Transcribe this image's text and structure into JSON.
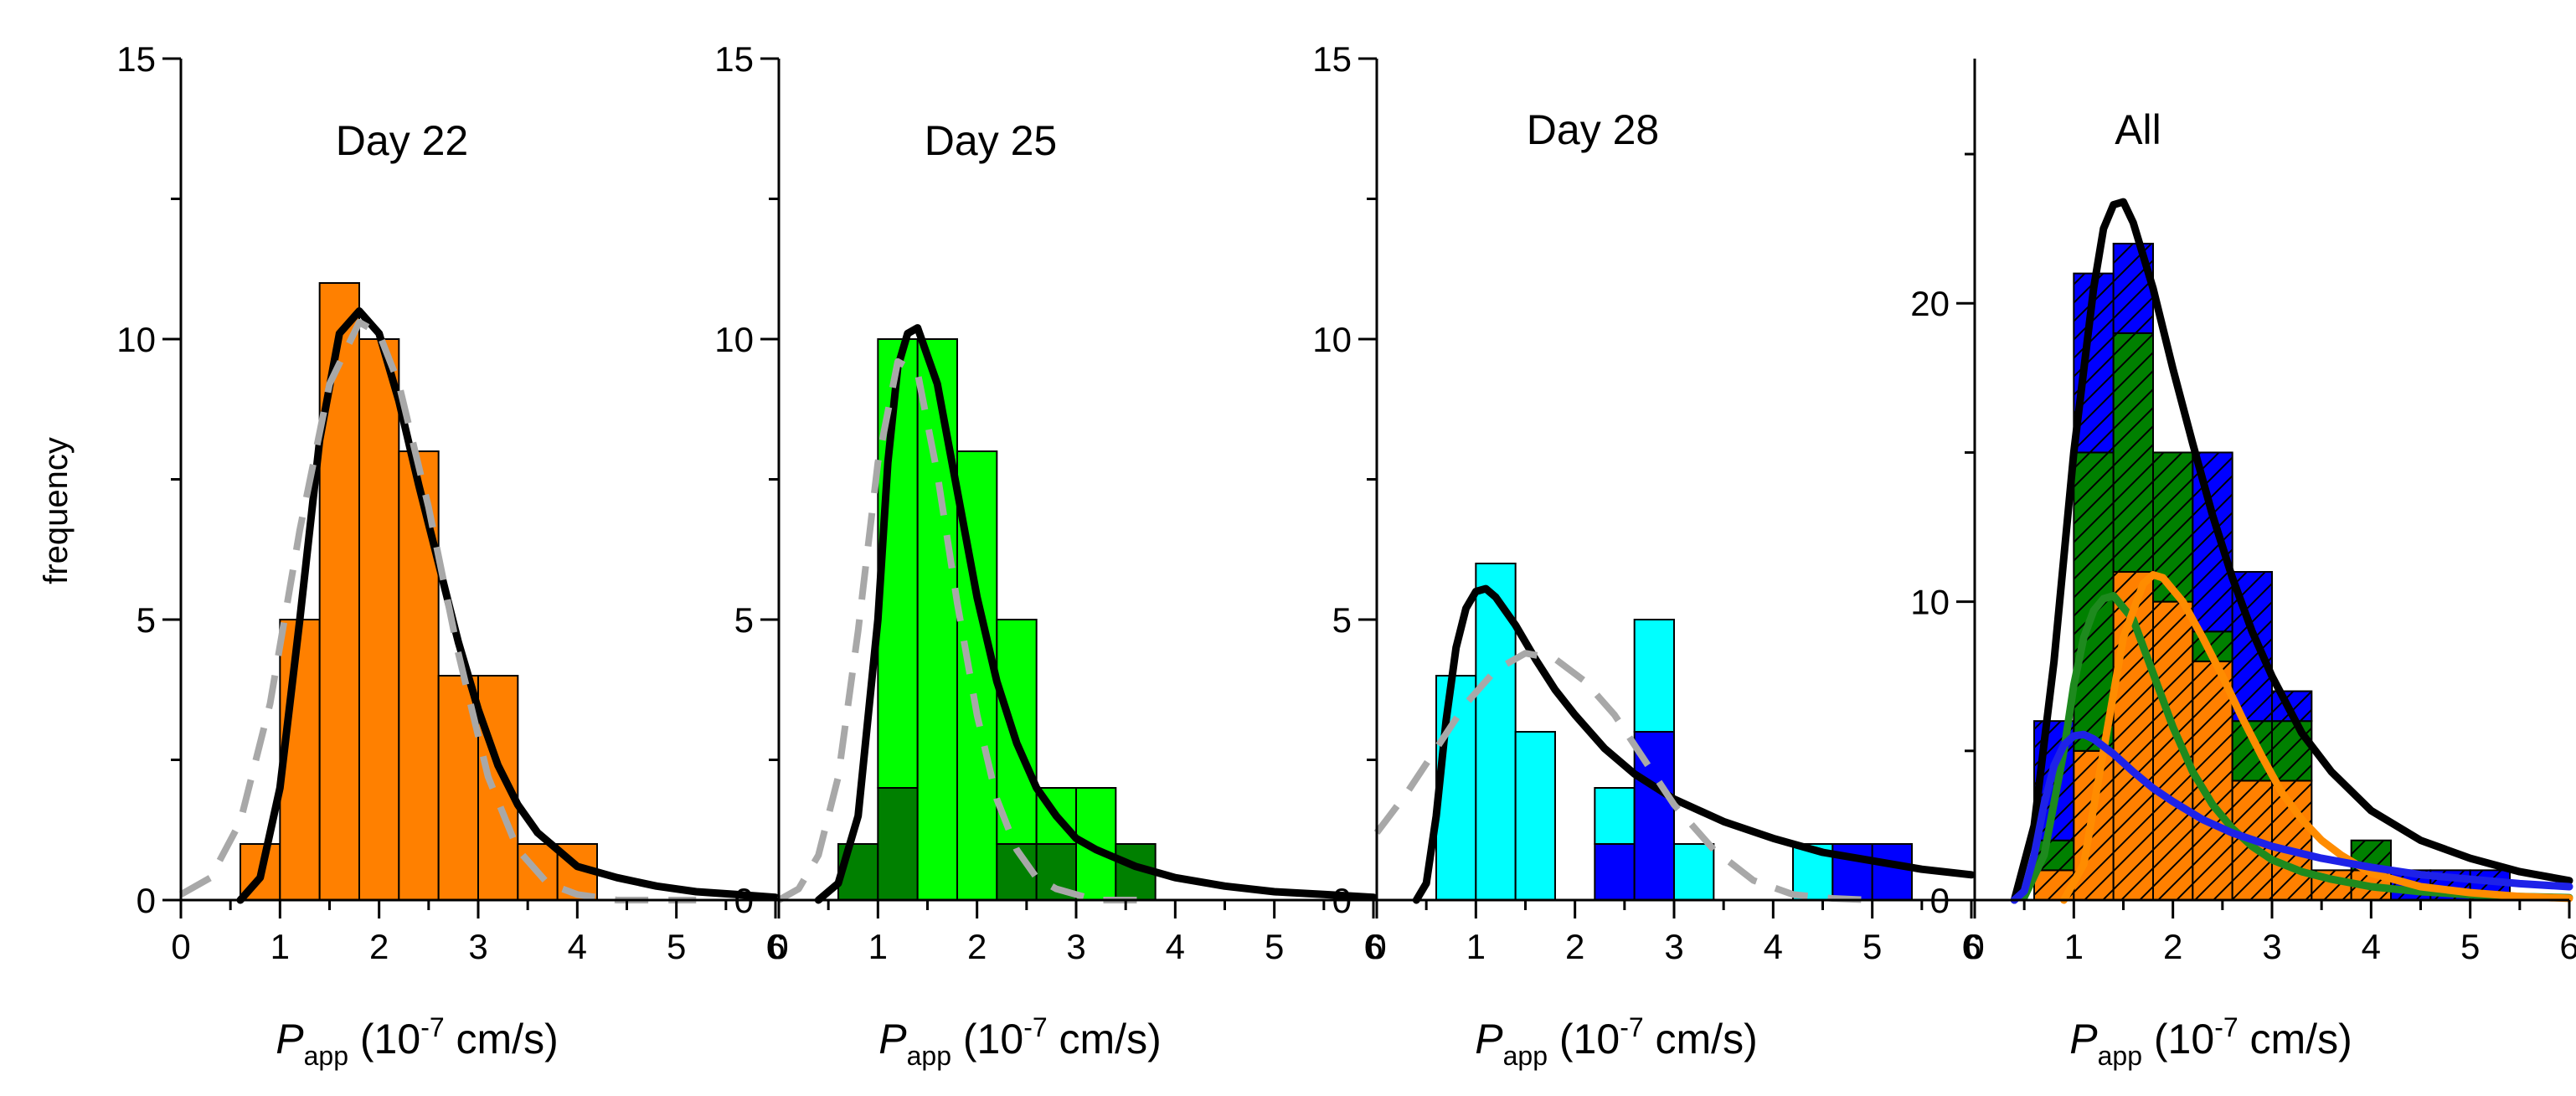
{
  "figure": {
    "ylabel": "frequency",
    "xlabel_prefix": "P",
    "xlabel_sub": "app",
    "xlabel_unit_pre": " (10",
    "xlabel_exp": "-7",
    "xlabel_unit_post": " cm/s)"
  },
  "colors": {
    "orange": "#FF8000",
    "bright_green": "#00FF00",
    "dark_green": "#008000",
    "cyan": "#00FFFF",
    "blue": "#0000FF",
    "fit_black": "#000000",
    "dash_gray": "#A8A8A8",
    "fit_green": "#1E8A1E",
    "fit_orange": "#FF8C00",
    "fit_blue": "#1E22E8"
  },
  "chart_data": [
    {
      "type": "bar",
      "title": "Day 22",
      "xlim": [
        0,
        6
      ],
      "ylim": [
        0,
        15
      ],
      "xticks": [
        0,
        1,
        2,
        3,
        4,
        5,
        6
      ],
      "yticks": [
        0,
        5,
        10,
        15
      ],
      "bin_width": 0.4,
      "bin_centers": [
        0.8,
        1.2,
        1.6,
        2.0,
        2.4,
        2.8,
        3.2,
        3.6,
        4.0,
        4.4
      ],
      "series": [
        {
          "name": "Day 22",
          "color": "orange",
          "values": [
            1,
            5,
            11,
            10,
            8,
            4,
            4,
            1,
            1,
            0
          ]
        }
      ],
      "fits": [
        {
          "name": "fit",
          "color": "fit_black",
          "style": "solid",
          "x": [
            0.6,
            0.8,
            1.0,
            1.2,
            1.4,
            1.6,
            1.8,
            2.0,
            2.2,
            2.4,
            2.6,
            2.8,
            3.0,
            3.2,
            3.4,
            3.6,
            3.8,
            4.0,
            4.4,
            4.8,
            5.2,
            5.6,
            6.0
          ],
          "y": [
            0,
            0.4,
            2.0,
            5.0,
            8.2,
            10.1,
            10.5,
            10.1,
            8.9,
            7.4,
            6.0,
            4.6,
            3.4,
            2.4,
            1.7,
            1.2,
            0.9,
            0.6,
            0.4,
            0.25,
            0.15,
            0.1,
            0.05
          ]
        },
        {
          "name": "gaussian",
          "color": "dash_gray",
          "style": "dashed",
          "x": [
            0.0,
            0.3,
            0.6,
            0.9,
            1.2,
            1.5,
            1.8,
            2.0,
            2.2,
            2.5,
            2.8,
            3.1,
            3.4,
            3.7,
            4.0,
            4.4,
            4.8,
            5.2
          ],
          "y": [
            0.1,
            0.4,
            1.4,
            3.5,
            6.6,
            9.2,
            10.3,
            10.1,
            9.2,
            7.0,
            4.4,
            2.2,
            0.9,
            0.3,
            0.1,
            0.0,
            0.0,
            0.0
          ]
        }
      ]
    },
    {
      "type": "bar",
      "title": "Day 25",
      "xlim": [
        0,
        6
      ],
      "ylim": [
        0,
        15
      ],
      "xticks": [
        0,
        1,
        2,
        3,
        4,
        5,
        6
      ],
      "yticks": [
        0,
        5,
        10,
        15
      ],
      "bin_width": 0.4,
      "bin_centers": [
        0.8,
        1.2,
        1.6,
        2.0,
        2.4,
        2.8,
        3.2,
        3.6
      ],
      "series": [
        {
          "name": "dark",
          "color": "dark_green",
          "values": [
            1,
            2,
            0,
            0,
            1,
            1,
            0,
            1
          ]
        },
        {
          "name": "light",
          "color": "bright_green",
          "values": [
            0,
            8,
            10,
            8,
            4,
            1,
            2,
            0
          ]
        }
      ],
      "fits": [
        {
          "name": "fit",
          "color": "fit_black",
          "style": "solid",
          "x": [
            0.4,
            0.6,
            0.8,
            1.0,
            1.1,
            1.2,
            1.3,
            1.4,
            1.6,
            1.8,
            2.0,
            2.2,
            2.4,
            2.6,
            2.8,
            3.0,
            3.2,
            3.6,
            4.0,
            4.5,
            5.0,
            5.5,
            6.0
          ],
          "y": [
            0,
            0.3,
            1.5,
            5.0,
            7.8,
            9.5,
            10.1,
            10.2,
            9.2,
            7.3,
            5.4,
            3.9,
            2.8,
            2.0,
            1.5,
            1.1,
            0.9,
            0.6,
            0.4,
            0.25,
            0.15,
            0.1,
            0.05
          ]
        },
        {
          "name": "gaussian",
          "color": "dash_gray",
          "style": "dashed",
          "x": [
            0.0,
            0.2,
            0.4,
            0.6,
            0.8,
            1.0,
            1.2,
            1.4,
            1.6,
            1.8,
            2.0,
            2.2,
            2.4,
            2.6,
            2.8,
            3.0,
            3.2,
            3.4,
            3.8
          ],
          "y": [
            0.0,
            0.2,
            0.8,
            2.2,
            4.8,
            7.8,
            9.6,
            9.4,
            7.6,
            5.3,
            3.3,
            1.8,
            0.9,
            0.4,
            0.2,
            0.1,
            0.0,
            0.0,
            0.0
          ]
        }
      ]
    },
    {
      "type": "bar",
      "title": "Day 28",
      "xlim": [
        0,
        6
      ],
      "ylim": [
        0,
        15
      ],
      "xticks": [
        0,
        1,
        2,
        3,
        4,
        5,
        6
      ],
      "yticks": [
        0,
        5,
        10,
        15
      ],
      "bin_width": 0.4,
      "bin_centers": [
        0.8,
        1.2,
        1.6,
        2.0,
        2.4,
        2.8,
        3.2,
        3.6,
        4.0,
        4.4,
        4.8,
        5.2
      ],
      "series": [
        {
          "name": "blue",
          "color": "blue",
          "values": [
            0,
            0,
            0,
            0,
            1,
            3,
            0,
            0,
            0,
            0,
            1,
            1
          ]
        },
        {
          "name": "cyan",
          "color": "cyan",
          "values": [
            4,
            6,
            3,
            0,
            1,
            2,
            1,
            0,
            0,
            1,
            0,
            0
          ]
        }
      ],
      "fits": [
        {
          "name": "fit",
          "color": "fit_black",
          "style": "solid",
          "x": [
            0.4,
            0.5,
            0.6,
            0.7,
            0.8,
            0.9,
            1.0,
            1.1,
            1.2,
            1.4,
            1.6,
            1.8,
            2.0,
            2.3,
            2.6,
            3.0,
            3.5,
            4.0,
            4.5,
            5.0,
            5.5,
            6.0
          ],
          "y": [
            0.0,
            0.3,
            1.5,
            3.2,
            4.5,
            5.2,
            5.5,
            5.55,
            5.4,
            4.9,
            4.3,
            3.75,
            3.3,
            2.7,
            2.25,
            1.8,
            1.4,
            1.1,
            0.85,
            0.7,
            0.55,
            0.45
          ]
        },
        {
          "name": "gaussian",
          "color": "dash_gray",
          "style": "dashed",
          "x": [
            0.0,
            0.3,
            0.6,
            0.9,
            1.2,
            1.5,
            1.8,
            2.1,
            2.4,
            2.7,
            3.0,
            3.4,
            3.8,
            4.2,
            4.6,
            5.0
          ],
          "y": [
            1.2,
            1.9,
            2.7,
            3.5,
            4.1,
            4.4,
            4.3,
            3.9,
            3.3,
            2.5,
            1.7,
            0.9,
            0.35,
            0.1,
            0.03,
            0.0
          ]
        }
      ]
    },
    {
      "type": "bar",
      "title": "All",
      "xlim": [
        0,
        6
      ],
      "ylim": [
        0,
        28.2
      ],
      "xticks": [
        0,
        1,
        2,
        3,
        4,
        5,
        6
      ],
      "yticks": [
        0,
        10,
        20
      ],
      "minor_yticks": [
        5,
        15,
        25
      ],
      "bin_width": 0.4,
      "bin_centers": [
        0.8,
        1.2,
        1.6,
        2.0,
        2.4,
        2.8,
        3.2,
        3.6,
        4.0,
        4.4,
        4.8,
        5.2
      ],
      "hatched": true,
      "series": [
        {
          "name": "orange",
          "color": "orange",
          "values": [
            1,
            5,
            11,
            10,
            8,
            4,
            4,
            1,
            1,
            0,
            0,
            0
          ]
        },
        {
          "name": "green",
          "color": "dark_green",
          "values": [
            1,
            10,
            8,
            5,
            1,
            2,
            2,
            0,
            1,
            0,
            0,
            0
          ]
        },
        {
          "name": "blue",
          "color": "blue",
          "values": [
            4,
            6,
            3,
            0,
            6,
            5,
            1,
            0,
            0,
            1,
            1,
            1
          ]
        }
      ],
      "fits": [
        {
          "name": "total",
          "color": "fit_black",
          "style": "solid",
          "x": [
            0.4,
            0.6,
            0.8,
            1.0,
            1.2,
            1.3,
            1.4,
            1.5,
            1.6,
            1.8,
            2.0,
            2.2,
            2.4,
            2.6,
            2.8,
            3.0,
            3.3,
            3.6,
            4.0,
            4.5,
            5.0,
            5.5,
            6.0
          ],
          "y": [
            0.0,
            2.5,
            8.0,
            15.0,
            20.5,
            22.5,
            23.3,
            23.4,
            22.7,
            20.5,
            17.8,
            15.3,
            12.9,
            10.8,
            9.0,
            7.5,
            5.6,
            4.3,
            3.0,
            2.0,
            1.4,
            0.95,
            0.65
          ]
        },
        {
          "name": "green fit",
          "color": "fit_green",
          "style": "solid",
          "x": [
            0.5,
            0.7,
            0.9,
            1.0,
            1.1,
            1.2,
            1.3,
            1.4,
            1.6,
            1.8,
            2.0,
            2.2,
            2.4,
            2.6,
            2.8,
            3.0,
            3.3,
            3.6,
            4.0,
            4.5,
            5.0,
            5.5,
            6.0
          ],
          "y": [
            0.1,
            1.5,
            5.0,
            7.2,
            8.8,
            9.7,
            10.1,
            10.2,
            9.4,
            7.6,
            5.8,
            4.3,
            3.2,
            2.4,
            1.8,
            1.35,
            0.95,
            0.7,
            0.45,
            0.28,
            0.18,
            0.12,
            0.08
          ]
        },
        {
          "name": "orange fit",
          "color": "fit_orange",
          "style": "solid",
          "x": [
            0.9,
            1.1,
            1.3,
            1.5,
            1.7,
            1.8,
            1.9,
            2.1,
            2.3,
            2.5,
            2.7,
            2.9,
            3.1,
            3.3,
            3.5,
            3.7,
            4.0,
            4.5,
            5.0,
            5.5,
            6.0
          ],
          "y": [
            0.0,
            1.2,
            5.0,
            8.8,
            10.6,
            10.9,
            10.8,
            10.0,
            8.8,
            7.5,
            6.1,
            4.8,
            3.6,
            2.7,
            2.0,
            1.5,
            0.9,
            0.45,
            0.25,
            0.12,
            0.06
          ]
        },
        {
          "name": "blue fit",
          "color": "fit_blue",
          "style": "solid",
          "x": [
            0.4,
            0.5,
            0.6,
            0.7,
            0.8,
            0.9,
            1.0,
            1.1,
            1.2,
            1.4,
            1.6,
            1.8,
            2.0,
            2.3,
            2.6,
            3.0,
            3.5,
            4.0,
            4.5,
            5.0,
            5.5,
            6.0
          ],
          "y": [
            0.0,
            0.3,
            1.5,
            3.2,
            4.5,
            5.2,
            5.5,
            5.55,
            5.4,
            4.9,
            4.3,
            3.75,
            3.3,
            2.7,
            2.25,
            1.8,
            1.4,
            1.1,
            0.85,
            0.7,
            0.55,
            0.45
          ]
        }
      ]
    }
  ]
}
